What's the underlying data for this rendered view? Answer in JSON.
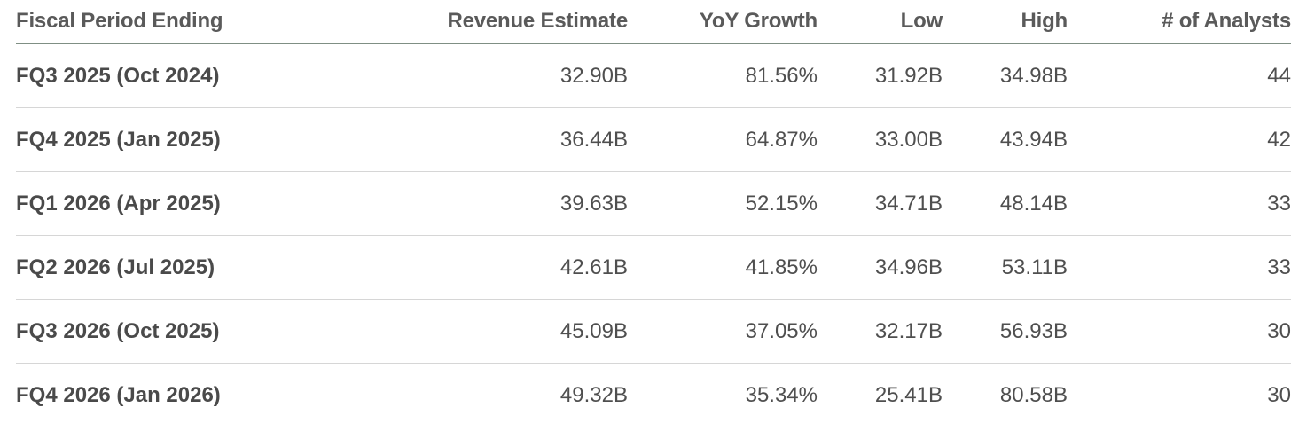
{
  "table": {
    "headers": [
      "Fiscal Period Ending",
      "Revenue Estimate",
      "YoY Growth",
      "Low",
      "High",
      "# of Analysts"
    ],
    "rows": [
      [
        "FQ3 2025 (Oct 2024)",
        "32.90B",
        "81.56%",
        "31.92B",
        "34.98B",
        "44"
      ],
      [
        "FQ4 2025 (Jan 2025)",
        "36.44B",
        "64.87%",
        "33.00B",
        "43.94B",
        "42"
      ],
      [
        "FQ1 2026 (Apr 2025)",
        "39.63B",
        "52.15%",
        "34.71B",
        "48.14B",
        "33"
      ],
      [
        "FQ2 2026 (Jul 2025)",
        "42.61B",
        "41.85%",
        "34.96B",
        "53.11B",
        "33"
      ],
      [
        "FQ3 2026 (Oct 2025)",
        "45.09B",
        "37.05%",
        "32.17B",
        "56.93B",
        "30"
      ],
      [
        "FQ4 2026 (Jan 2026)",
        "49.32B",
        "35.34%",
        "25.41B",
        "80.58B",
        "30"
      ]
    ]
  },
  "colors": {
    "header_rule": "#7f8f84",
    "row_rule": "#d6d6d6",
    "text": "#4f4f4f"
  }
}
